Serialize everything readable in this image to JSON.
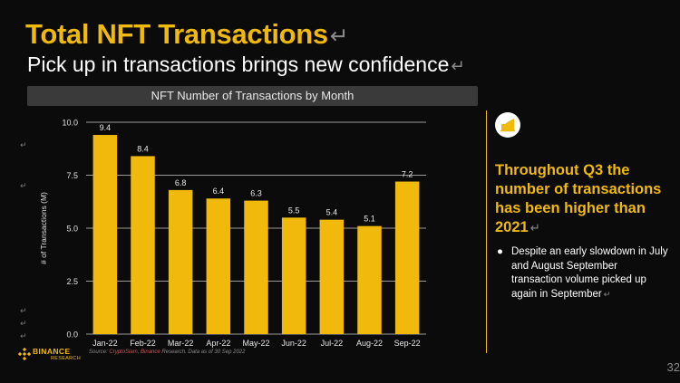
{
  "slide": {
    "title": "Total NFT Transactions",
    "subtitle": "Pick up in transactions brings new confidence",
    "return_mark": "↵",
    "page_number": "32"
  },
  "chart_data": {
    "type": "bar",
    "title": "NFT Number of Transactions by Month",
    "xlabel": "",
    "ylabel": "# of Transactions (M)",
    "categories": [
      "Jan-22",
      "Feb-22",
      "Mar-22",
      "Apr-22",
      "May-22",
      "Jun-22",
      "Jul-22",
      "Aug-22",
      "Sep-22"
    ],
    "values": [
      9.4,
      8.4,
      6.8,
      6.4,
      6.3,
      5.5,
      5.4,
      5.1,
      7.2
    ],
    "data_labels": [
      "9.4",
      "8.4",
      "6.8",
      "6.4",
      "6.3",
      "5.5",
      "5.4",
      "5.1",
      "7.2"
    ],
    "ylim": [
      0,
      10
    ],
    "yticks": [
      0,
      2.5,
      5,
      7.5,
      10
    ],
    "ytick_labels": [
      "0.0",
      "2.5",
      "5.0",
      "7.5",
      "10.0"
    ],
    "grid": true,
    "legend": "none",
    "bar_color": "#f0b90b"
  },
  "insight": {
    "headline": "Throughout Q3 the number of transactions has been higher than 2021",
    "bullet": "Despite an early slowdown in July and August September transaction volume picked up again in September"
  },
  "footer": {
    "logo_primary": "BINANCE",
    "logo_secondary": "RESEARCH",
    "source_prefix": "Source: ",
    "source_link1": "CryptoSlam",
    "source_sep": ", ",
    "source_link2": "Binance",
    "source_suffix": " Research. Data as of 30 Sep 2022"
  },
  "colors": {
    "accent": "#f0b90b",
    "background": "#0b0b0b",
    "header_bar": "#3a3a3a"
  }
}
